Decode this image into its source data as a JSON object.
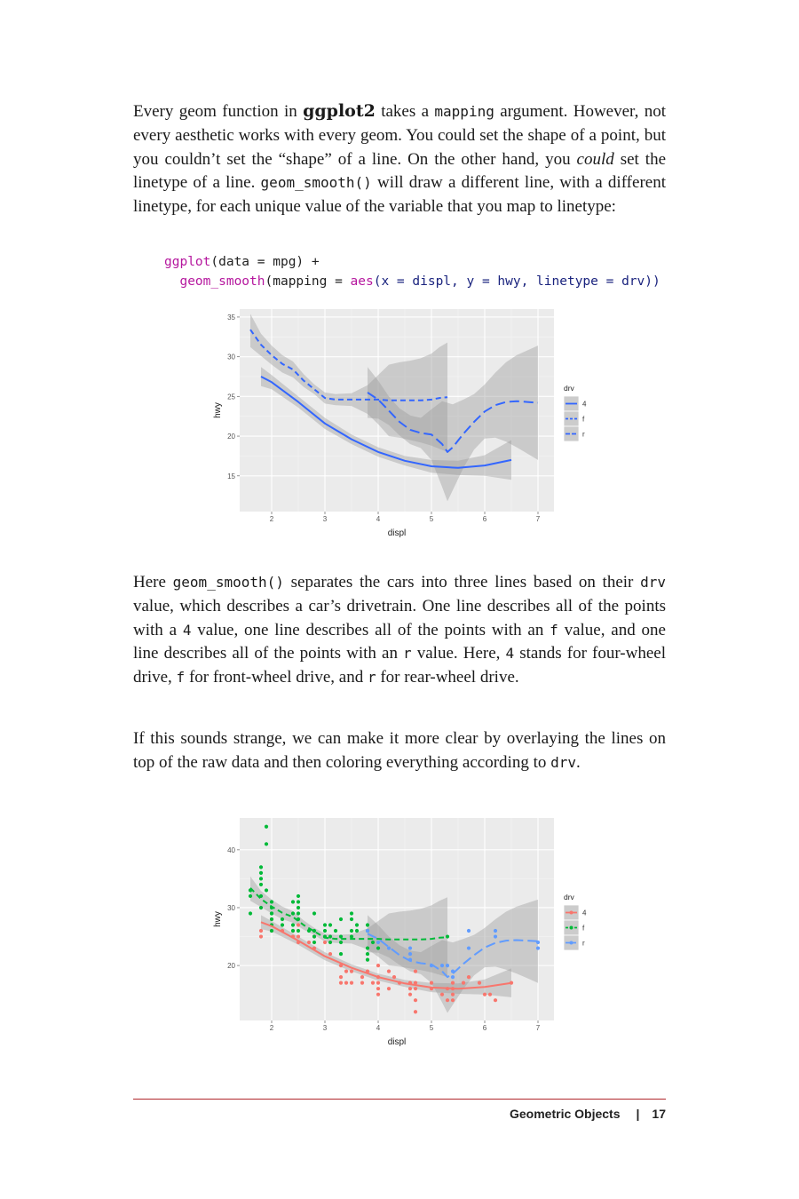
{
  "para1": {
    "t1": "Every geom function in ",
    "t2": "ggplot2",
    "t3": " takes a ",
    "t4": "mapping",
    "t5": " argument. However, not every aesthetic works with every geom. You could set the shape of a point, but you couldn’t set the “shape” of a line. On the other hand, you ",
    "t6": "could",
    "t7": " set the linetype of a line. ",
    "t8": "geom_smooth()",
    "t9": " will draw a different line, with a different linetype, for each unique value of the variable that you map to linetype:"
  },
  "code": {
    "l1_fn": "ggplot",
    "l1_rest": "(data = mpg) +",
    "l2_fn": "geom_smooth",
    "l2_a": "(mapping = ",
    "l2_fn2": "aes",
    "l2_b": "(x = displ, y = hwy, linetype = drv))"
  },
  "para2": {
    "t1": "Here ",
    "t2": "geom_smooth()",
    "t3": " separates the cars into three lines based on their ",
    "t4": "drv",
    "t5": " value, which describes a car’s drivetrain. One line describes all of the points with a ",
    "t6": "4",
    "t7": " value, one line describes all of the points with an ",
    "t8": "f",
    "t9": " value, and one line describes all of the points with an ",
    "t10": "r",
    "t11": " value. Here, ",
    "t12": "4",
    "t13": " stands for four-wheel drive, ",
    "t14": "f",
    "t15": " for front-wheel drive, and ",
    "t16": "r",
    "t17": " for rear-wheel drive."
  },
  "para3": {
    "t1": "If this sounds strange, we can make it more clear by overlaying the lines on top of the raw data and then coloring everything according to ",
    "t2": "drv",
    "t3": "."
  },
  "footer": {
    "section": "Geometric Objects",
    "separator": "|",
    "page": "17"
  },
  "colors": {
    "line_blue": "#3366FF",
    "red": "#F8766D",
    "green": "#00BA38",
    "blue": "#619CFF",
    "panel": "#EBEBEB"
  },
  "chart_data": [
    {
      "type": "line",
      "xlabel": "displ",
      "ylabel": "hwy",
      "xlim": [
        1.4,
        7.3
      ],
      "ylim": [
        10.5,
        36
      ],
      "xticks": [
        2,
        3,
        4,
        5,
        6,
        7
      ],
      "yticks": [
        15,
        20,
        25,
        30,
        35
      ],
      "legend": {
        "title": "drv",
        "position": "right",
        "entries": [
          "4",
          "f",
          "r"
        ]
      },
      "series": [
        {
          "name": "4",
          "linetype": "solid",
          "x": [
            1.8,
            2.0,
            2.5,
            3.0,
            3.5,
            4.0,
            4.5,
            5.0,
            5.5,
            6.0,
            6.5
          ],
          "y": [
            27.5,
            26.8,
            24.3,
            21.6,
            19.6,
            18.0,
            16.9,
            16.2,
            16.0,
            16.3,
            17.0
          ],
          "band": [
            [
              26.3,
              28.7
            ],
            [
              25.9,
              27.7
            ],
            [
              23.6,
              25.0
            ],
            [
              20.9,
              22.3
            ],
            [
              19.0,
              20.2
            ],
            [
              17.4,
              18.6
            ],
            [
              16.3,
              17.5
            ],
            [
              15.4,
              17.0
            ],
            [
              15.1,
              16.9
            ],
            [
              15.0,
              17.6
            ],
            [
              14.5,
              19.5
            ]
          ]
        },
        {
          "name": "f",
          "linetype": "dashed",
          "x": [
            1.6,
            1.8,
            2.0,
            2.2,
            2.4,
            2.6,
            2.8,
            3.0,
            3.2,
            3.5,
            3.8,
            4.0,
            4.2,
            4.4,
            4.6,
            4.8,
            5.0,
            5.15,
            5.3
          ],
          "y": [
            33.4,
            31.5,
            30.2,
            29.1,
            28.4,
            27.0,
            25.9,
            24.8,
            24.6,
            24.6,
            24.6,
            24.6,
            24.5,
            24.5,
            24.5,
            24.5,
            24.6,
            24.8,
            24.9
          ],
          "band": [
            [
              31.2,
              35.4
            ],
            [
              30.1,
              32.9
            ],
            [
              29.0,
              31.4
            ],
            [
              28.0,
              30.2
            ],
            [
              27.4,
              29.4
            ],
            [
              26.2,
              27.8
            ],
            [
              25.3,
              26.5
            ],
            [
              24.1,
              25.5
            ],
            [
              23.9,
              25.3
            ],
            [
              23.8,
              25.4
            ],
            [
              22.8,
              26.4
            ],
            [
              21.5,
              27.7
            ],
            [
              20.0,
              29.0
            ],
            [
              19.8,
              29.3
            ],
            [
              19.5,
              29.5
            ],
            [
              19.2,
              29.8
            ],
            [
              18.8,
              30.4
            ],
            [
              18.4,
              31.2
            ],
            [
              18.0,
              31.8
            ]
          ]
        },
        {
          "name": "r",
          "linetype": "longdash",
          "x": [
            3.8,
            4.0,
            4.2,
            4.4,
            4.6,
            4.8,
            5.0,
            5.2,
            5.3,
            5.4,
            5.6,
            5.8,
            6.0,
            6.2,
            6.4,
            6.6,
            6.8,
            7.0
          ],
          "y": [
            25.5,
            24.6,
            23.2,
            21.8,
            20.8,
            20.4,
            20.2,
            19.0,
            18.0,
            18.6,
            20.3,
            21.8,
            23.1,
            23.9,
            24.3,
            24.4,
            24.3,
            24.2
          ],
          "band": [
            [
              22.3,
              28.7
            ],
            [
              22.2,
              27.0
            ],
            [
              21.4,
              25.0
            ],
            [
              20.1,
              23.5
            ],
            [
              19.0,
              22.6
            ],
            [
              18.5,
              22.3
            ],
            [
              17.0,
              23.4
            ],
            [
              13.6,
              24.4
            ],
            [
              11.8,
              24.2
            ],
            [
              13.2,
              24.0
            ],
            [
              16.0,
              24.6
            ],
            [
              18.3,
              25.3
            ],
            [
              19.7,
              26.5
            ],
            [
              19.8,
              28.0
            ],
            [
              19.3,
              29.3
            ],
            [
              18.6,
              30.2
            ],
            [
              17.8,
              30.8
            ],
            [
              17.0,
              31.4
            ]
          ]
        }
      ]
    },
    {
      "type": "scatter",
      "xlabel": "displ",
      "ylabel": "hwy",
      "xlim": [
        1.4,
        7.3
      ],
      "ylim": [
        10.5,
        45.5
      ],
      "xticks": [
        2,
        3,
        4,
        5,
        6,
        7
      ],
      "yticks": [
        20,
        30,
        40
      ],
      "legend": {
        "title": "drv",
        "position": "right",
        "entries": [
          "4",
          "f",
          "r"
        ]
      },
      "points": {
        "4": [
          [
            1.8,
            26
          ],
          [
            1.8,
            25
          ],
          [
            2.0,
            28
          ],
          [
            2.0,
            27
          ],
          [
            2.5,
            25
          ],
          [
            2.5,
            24
          ],
          [
            2.8,
            25
          ],
          [
            2.8,
            23
          ],
          [
            3.0,
            24
          ],
          [
            3.1,
            22
          ],
          [
            3.3,
            20
          ],
          [
            3.4,
            19
          ],
          [
            3.7,
            18
          ],
          [
            3.8,
            19
          ],
          [
            4.0,
            17
          ],
          [
            4.0,
            20
          ],
          [
            4.2,
            19
          ],
          [
            4.3,
            18
          ],
          [
            4.6,
            17
          ],
          [
            4.7,
            17
          ],
          [
            4.7,
            19
          ],
          [
            4.7,
            12
          ],
          [
            4.7,
            16
          ],
          [
            5.0,
            16
          ],
          [
            5.2,
            15
          ],
          [
            5.3,
            16
          ],
          [
            5.4,
            15
          ],
          [
            5.4,
            17
          ],
          [
            5.7,
            18
          ],
          [
            5.9,
            17
          ],
          [
            6.1,
            15
          ],
          [
            6.2,
            14
          ],
          [
            6.5,
            17
          ],
          [
            2.0,
            26
          ],
          [
            2.4,
            26
          ],
          [
            2.4,
            25
          ],
          [
            3.5,
            17
          ],
          [
            3.7,
            17
          ],
          [
            4.0,
            15
          ],
          [
            4.6,
            16
          ],
          [
            5.0,
            17
          ],
          [
            5.3,
            14
          ],
          [
            5.6,
            17
          ],
          [
            4.7,
            14
          ],
          [
            2.5,
            27
          ],
          [
            2.7,
            24
          ],
          [
            3.3,
            17
          ],
          [
            3.4,
            17
          ],
          [
            4.0,
            16
          ],
          [
            4.0,
            18
          ],
          [
            4.6,
            15
          ],
          [
            5.4,
            16
          ],
          [
            3.3,
            18
          ],
          [
            3.5,
            19
          ],
          [
            3.9,
            17
          ],
          [
            4.2,
            16
          ],
          [
            4.4,
            17
          ],
          [
            5.4,
            14
          ],
          [
            6.0,
            15
          ],
          [
            2.2,
            26
          ]
        ],
        "f": [
          [
            1.6,
            33
          ],
          [
            1.6,
            32
          ],
          [
            1.6,
            29
          ],
          [
            1.8,
            35
          ],
          [
            1.8,
            37
          ],
          [
            1.8,
            34
          ],
          [
            1.8,
            30
          ],
          [
            1.8,
            32
          ],
          [
            1.9,
            33
          ],
          [
            2.0,
            29
          ],
          [
            2.0,
            30
          ],
          [
            2.0,
            27
          ],
          [
            2.0,
            28
          ],
          [
            2.2,
            27
          ],
          [
            2.4,
            26
          ],
          [
            2.4,
            27
          ],
          [
            2.4,
            31
          ],
          [
            2.5,
            29
          ],
          [
            2.5,
            30
          ],
          [
            2.5,
            32
          ],
          [
            2.5,
            26
          ],
          [
            2.7,
            26
          ],
          [
            2.8,
            29
          ],
          [
            2.8,
            25
          ],
          [
            3.0,
            26
          ],
          [
            3.1,
            27
          ],
          [
            3.3,
            24
          ],
          [
            3.3,
            22
          ],
          [
            3.5,
            28
          ],
          [
            3.5,
            29
          ],
          [
            3.6,
            26
          ],
          [
            3.8,
            23
          ],
          [
            3.8,
            21
          ],
          [
            3.8,
            22
          ],
          [
            3.8,
            26
          ],
          [
            3.9,
            24
          ],
          [
            4.0,
            23
          ],
          [
            5.3,
            25
          ],
          [
            1.9,
            44
          ],
          [
            1.9,
            41
          ],
          [
            2.0,
            31
          ],
          [
            2.4,
            29
          ],
          [
            2.5,
            28
          ],
          [
            3.0,
            25
          ],
          [
            3.2,
            26
          ],
          [
            3.5,
            25
          ],
          [
            1.8,
            36
          ],
          [
            2.0,
            26
          ],
          [
            2.8,
            24
          ],
          [
            3.1,
            24
          ],
          [
            3.3,
            28
          ],
          [
            3.8,
            27
          ],
          [
            3.6,
            27
          ],
          [
            3.0,
            27
          ],
          [
            2.5,
            31
          ],
          [
            3.5,
            26
          ],
          [
            3.1,
            25
          ],
          [
            2.2,
            28
          ],
          [
            2.8,
            26
          ],
          [
            3.3,
            25
          ],
          [
            2.0,
            29
          ],
          [
            1.6,
            33
          ]
        ],
        "r": [
          [
            3.8,
            26
          ],
          [
            4.0,
            24
          ],
          [
            4.2,
            23
          ],
          [
            4.6,
            22
          ],
          [
            4.6,
            23
          ],
          [
            5.0,
            20
          ],
          [
            5.2,
            20
          ],
          [
            5.4,
            18
          ],
          [
            5.4,
            19
          ],
          [
            5.7,
            23
          ],
          [
            5.7,
            26
          ],
          [
            6.2,
            25
          ],
          [
            6.2,
            26
          ],
          [
            7.0,
            24
          ],
          [
            7.0,
            23
          ],
          [
            5.3,
            20
          ],
          [
            4.6,
            21
          ]
        ]
      }
    }
  ]
}
